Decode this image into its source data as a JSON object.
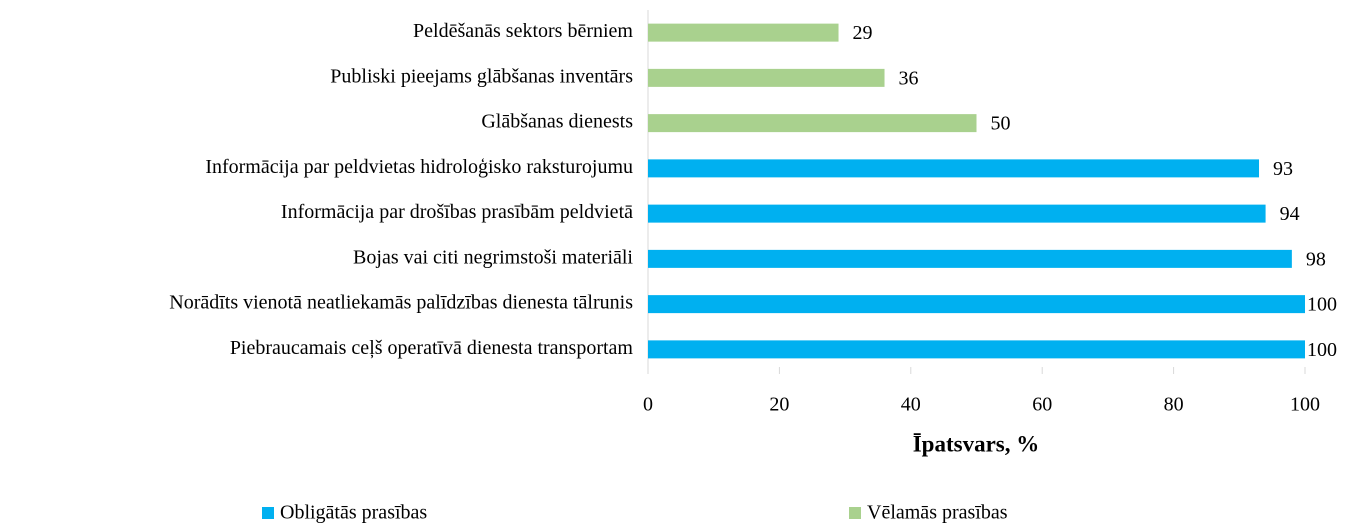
{
  "chart_data": {
    "type": "barh",
    "categories": [
      "Peldēšanās sektors bērniem",
      "Publiski pieejams glābšanas inventārs",
      "Glābšanas dienests",
      "Informācija par peldvietas hidroloģisko raksturojumu",
      "Informācija par drošības prasībām peldvietā",
      "Bojas vai citi negrimstoši materiāli",
      "Norādīts vienotā neatliekamās palīdzības dienesta tālrunis",
      "Piebraucamais ceļš operatīvā dienesta transportam"
    ],
    "series": [
      {
        "name": "Obligātās prasības",
        "color": "#00b0f0",
        "values": [
          null,
          null,
          null,
          93,
          94,
          98,
          100,
          100
        ]
      },
      {
        "name": "Vēlamās prasības",
        "color": "#a9d18e",
        "values": [
          29,
          36,
          50,
          null,
          null,
          null,
          null,
          null
        ]
      }
    ],
    "xlabel": "Īpatsvars, %",
    "xlim": [
      0,
      100
    ],
    "xticks": [
      0,
      20,
      40,
      60,
      80,
      100
    ],
    "legend": "bottom"
  }
}
